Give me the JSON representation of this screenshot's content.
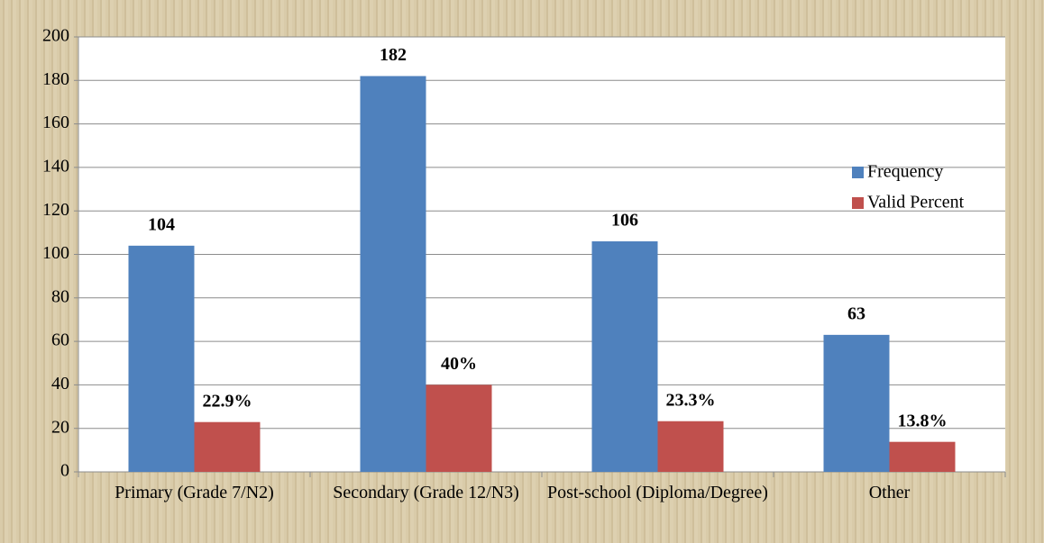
{
  "chart_data": {
    "type": "bar",
    "categories": [
      "Primary  (Grade 7/N2)",
      "Secondary (Grade 12/N3)",
      "Post-school (Diploma/Degree)",
      "Other"
    ],
    "series": [
      {
        "name": "Frequency",
        "color": "#4f81bd",
        "values": [
          104,
          182,
          106,
          63
        ]
      },
      {
        "name": "Valid Percent",
        "color": "#c0504d",
        "values": [
          22.9,
          40,
          23.3,
          13.8
        ],
        "value_labels": [
          "22.9%",
          "40%",
          "23.3%",
          "13.8%"
        ]
      }
    ],
    "ylim": [
      0,
      200
    ],
    "yticks": [
      0,
      20,
      40,
      60,
      80,
      100,
      120,
      140,
      160,
      180,
      200
    ],
    "grid": true,
    "legend": "right"
  }
}
